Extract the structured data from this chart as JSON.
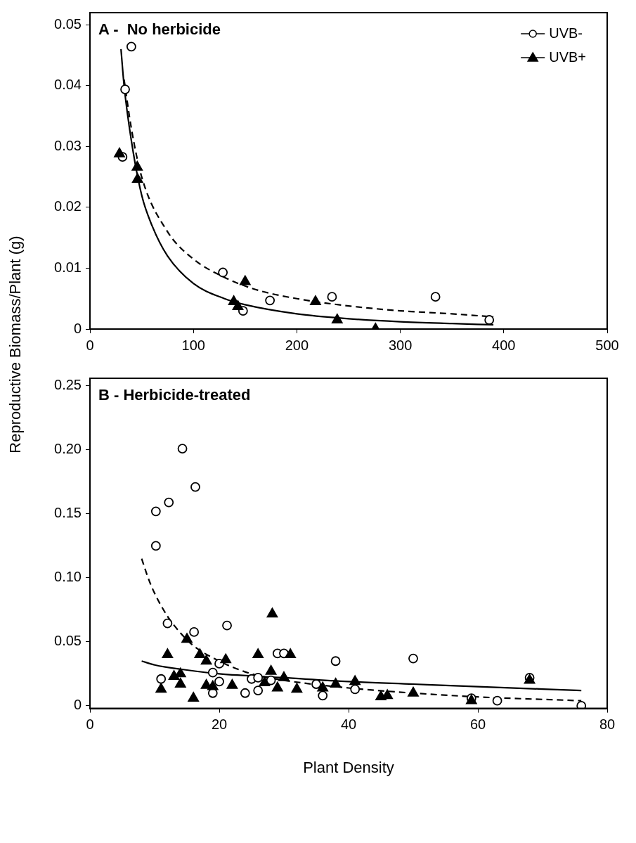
{
  "chart_data": [
    {
      "type": "scatter",
      "title": "A -  No herbicide",
      "ylabel": "Reproductive Biomass/Plant (g)",
      "xlim": [
        0,
        500
      ],
      "xticks": [
        0,
        100,
        200,
        300,
        400,
        500
      ],
      "ylim": [
        0,
        0.052
      ],
      "yticks": [
        0,
        0.01,
        0.02,
        0.03,
        0.04,
        0.05
      ],
      "legend": "top right",
      "grid": false,
      "series": [
        {
          "name": "UVB-",
          "color": "#000000",
          "marker": "circle",
          "x": [
            40,
            34,
            31.5,
            128.5,
            148,
            174,
            234,
            334,
            386
          ],
          "values": [
            0.0464,
            0.0394,
            0.0283,
            0.0093,
            0.003,
            0.0047,
            0.0053,
            0.0053,
            0.0015
          ]
        },
        {
          "name": "UVB+",
          "color": "#000000",
          "marker": "triangle",
          "x": [
            28.5,
            45.7,
            46,
            150,
            139,
            143,
            218,
            239,
            276
          ],
          "values": [
            0.0288,
            0.0266,
            0.0246,
            0.0078,
            0.0045,
            0.0037,
            0.0045,
            0.0015,
            0
          ]
        },
        {
          "type": "line",
          "color": "#000000",
          "marker": "none",
          "line_style": "dashed",
          "x": [
            33,
            40,
            50,
            75,
            100,
            130,
            160,
            200,
            250,
            300,
            350,
            390
          ],
          "values": [
            0.041,
            0.033,
            0.025,
            0.016,
            0.0115,
            0.0085,
            0.0065,
            0.005,
            0.0038,
            0.003,
            0.0025,
            0.002
          ]
        },
        {
          "type": "line",
          "color": "#000000",
          "marker": "none",
          "line_style": "solid",
          "x": [
            30,
            33,
            40,
            50,
            60,
            75,
            100,
            130,
            150,
            200,
            250,
            300,
            350,
            390
          ],
          "values": [
            0.046,
            0.04,
            0.031,
            0.022,
            0.017,
            0.012,
            0.0075,
            0.005,
            0.004,
            0.0025,
            0.0017,
            0.0012,
            0.0009,
            0.0007
          ]
        }
      ]
    },
    {
      "type": "scatter",
      "title": "B - Herbicide-treated",
      "xlabel": "Plant Density",
      "xlim": [
        0,
        80
      ],
      "xticks": [
        0,
        20,
        40,
        60,
        80
      ],
      "ylim": [
        -0.002,
        0.256
      ],
      "yticks": [
        0,
        0.05,
        {
          "value": 0.1,
          "label": "0.10"
        },
        0.15,
        {
          "value": 0.2,
          "label": "0.20"
        },
        0.25
      ],
      "legend": false,
      "grid": false,
      "series": [
        {
          "color": "#000000",
          "marker": "circle",
          "x": [
            14.3,
            16.3,
            12.2,
            10.2,
            10.2,
            12.0,
            16.1,
            21.2,
            11,
            20,
            19,
            19,
            20,
            24,
            25,
            26,
            28,
            29,
            30,
            35,
            36,
            38,
            41,
            50,
            59,
            63,
            68,
            76,
            26
          ],
          "values": [
            0.201,
            0.171,
            0.159,
            0.152,
            0.125,
            0.0645,
            0.0577,
            0.0628,
            0.021,
            0.033,
            0.026,
            0.01,
            0.019,
            0.01,
            0.021,
            0.012,
            0.02,
            0.041,
            0.041,
            0.017,
            0.008,
            0.035,
            0.013,
            0.037,
            0.006,
            0.004,
            0.022,
            0,
            0.022
          ]
        },
        {
          "color": "#000000",
          "marker": "triangle",
          "x": [
            28.2,
            15,
            11,
            12,
            13,
            14,
            14,
            16,
            17,
            18,
            18,
            19,
            21,
            22,
            26,
            27,
            28,
            29,
            30,
            31,
            32,
            36,
            38,
            41,
            45,
            46,
            50,
            59,
            68
          ],
          "values": [
            0.0718,
            0.052,
            0.013,
            0.04,
            0.023,
            0.025,
            0.017,
            0.006,
            0.04,
            0.035,
            0.016,
            0.015,
            0.036,
            0.016,
            0.04,
            0.018,
            0.027,
            0.014,
            0.022,
            0.04,
            0.013,
            0.014,
            0.017,
            0.019,
            0.007,
            0.008,
            0.01,
            0.004,
            0.02
          ]
        },
        {
          "type": "line",
          "color": "#000000",
          "marker": "none",
          "line_style": "dashed",
          "x": [
            8,
            9,
            10,
            12,
            14,
            16,
            20,
            25,
            30,
            40,
            50,
            60,
            76
          ],
          "values": [
            0.115,
            0.1,
            0.088,
            0.07,
            0.057,
            0.047,
            0.035,
            0.025,
            0.02,
            0.014,
            0.01,
            0.007,
            0.004
          ]
        },
        {
          "type": "line",
          "color": "#000000",
          "marker": "none",
          "line_style": "solid",
          "x": [
            8,
            10,
            15,
            20,
            30,
            40,
            50,
            60,
            76
          ],
          "values": [
            0.035,
            0.032,
            0.028,
            0.025,
            0.022,
            0.019,
            0.017,
            0.015,
            0.012
          ]
        }
      ]
    }
  ]
}
